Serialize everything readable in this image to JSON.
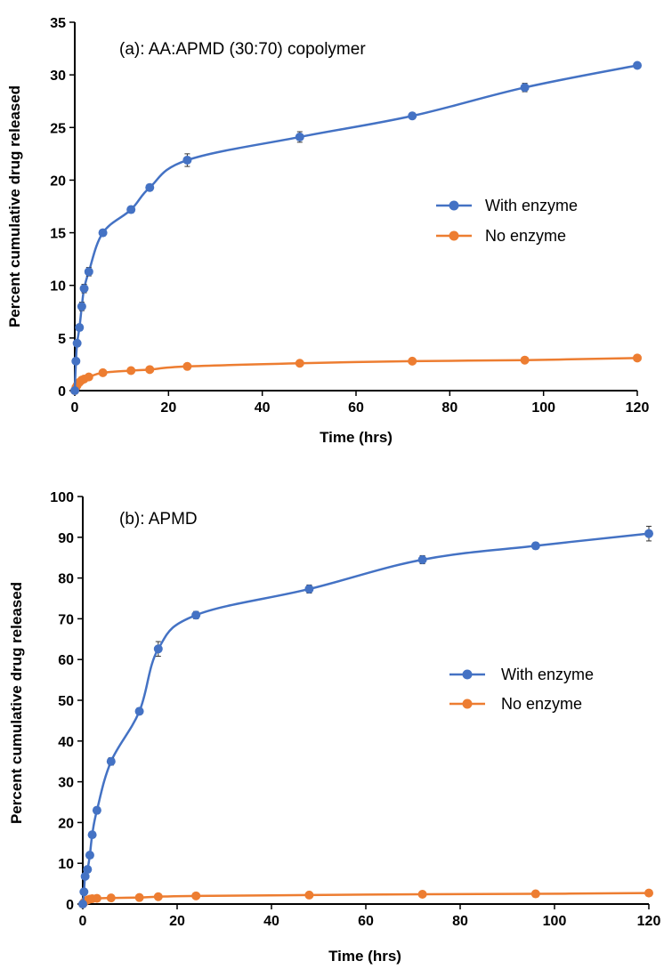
{
  "chart_data": [
    {
      "type": "line",
      "title": "(a):  AA:APMD (30:70) copolymer",
      "xlabel": "Time (hrs)",
      "ylabel": "Percent cumulative drug released",
      "xlim": [
        0,
        120
      ],
      "ylim": [
        0,
        35
      ],
      "xticks": [
        0,
        20,
        40,
        60,
        80,
        100,
        120
      ],
      "yticks": [
        0,
        5,
        10,
        15,
        20,
        25,
        30,
        35
      ],
      "grid": false,
      "legend_position": "center-right",
      "series": [
        {
          "name": "With enzyme",
          "color": "#4472C4",
          "x": [
            0,
            0.25,
            0.5,
            1,
            1.5,
            2,
            3,
            6,
            12,
            16,
            24,
            48,
            72,
            96,
            120
          ],
          "values": [
            0,
            2.8,
            4.5,
            6.0,
            8.0,
            9.7,
            11.3,
            15.0,
            17.2,
            19.3,
            21.9,
            24.1,
            26.1,
            28.8,
            30.9
          ],
          "errors": [
            0,
            0.2,
            0.3,
            0.3,
            0.4,
            0.4,
            0.4,
            0.3,
            0.3,
            0.3,
            0.6,
            0.5,
            0.3,
            0.4,
            0.2
          ]
        },
        {
          "name": "No enzyme",
          "color": "#ED7D31",
          "x": [
            0,
            0.25,
            0.5,
            1,
            1.5,
            2,
            3,
            6,
            12,
            16,
            24,
            48,
            72,
            96,
            120
          ],
          "values": [
            0,
            0.3,
            0.5,
            0.8,
            1.0,
            1.1,
            1.3,
            1.7,
            1.9,
            2.0,
            2.3,
            2.6,
            2.8,
            2.9,
            3.1
          ],
          "errors": [
            0,
            0.1,
            0.1,
            0.1,
            0.1,
            0.1,
            0.1,
            0.15,
            0.15,
            0.15,
            0.2,
            0.2,
            0.2,
            0.2,
            0.15
          ]
        }
      ]
    },
    {
      "type": "line",
      "title": "(b):  APMD",
      "xlabel": "Time (hrs)",
      "ylabel": "Percent cumulative drug released",
      "xlim": [
        0,
        120
      ],
      "ylim": [
        0,
        100
      ],
      "xticks": [
        0,
        20,
        40,
        60,
        80,
        100,
        120
      ],
      "yticks": [
        0,
        10,
        20,
        30,
        40,
        50,
        60,
        70,
        80,
        90,
        100
      ],
      "grid": false,
      "legend_position": "center-right",
      "series": [
        {
          "name": "With enzyme",
          "color": "#4472C4",
          "x": [
            0,
            0.25,
            0.5,
            1,
            1.5,
            2,
            3,
            6,
            12,
            16,
            24,
            48,
            72,
            96,
            120
          ],
          "values": [
            0,
            3,
            6.8,
            8.5,
            12,
            17,
            23,
            35,
            47.3,
            62.6,
            70.9,
            77.3,
            84.5,
            87.9,
            90.9
          ],
          "errors": [
            0,
            0.4,
            0.6,
            0.6,
            0.7,
            0.7,
            0.8,
            0.9,
            0.8,
            1.8,
            0.9,
            1.0,
            1.0,
            0.8,
            1.8
          ]
        },
        {
          "name": "No enzyme",
          "color": "#ED7D31",
          "x": [
            0,
            0.25,
            0.5,
            1,
            1.5,
            2,
            3,
            6,
            12,
            16,
            24,
            48,
            72,
            96,
            120
          ],
          "values": [
            0,
            0.4,
            0.7,
            1.0,
            1.2,
            1.3,
            1.4,
            1.5,
            1.6,
            1.8,
            2.0,
            2.2,
            2.4,
            2.5,
            2.7
          ],
          "errors": [
            0,
            0.1,
            0.1,
            0.1,
            0.1,
            0.1,
            0.1,
            0.2,
            0.2,
            0.2,
            0.2,
            0.2,
            0.2,
            0.2,
            0.2
          ]
        }
      ]
    }
  ]
}
